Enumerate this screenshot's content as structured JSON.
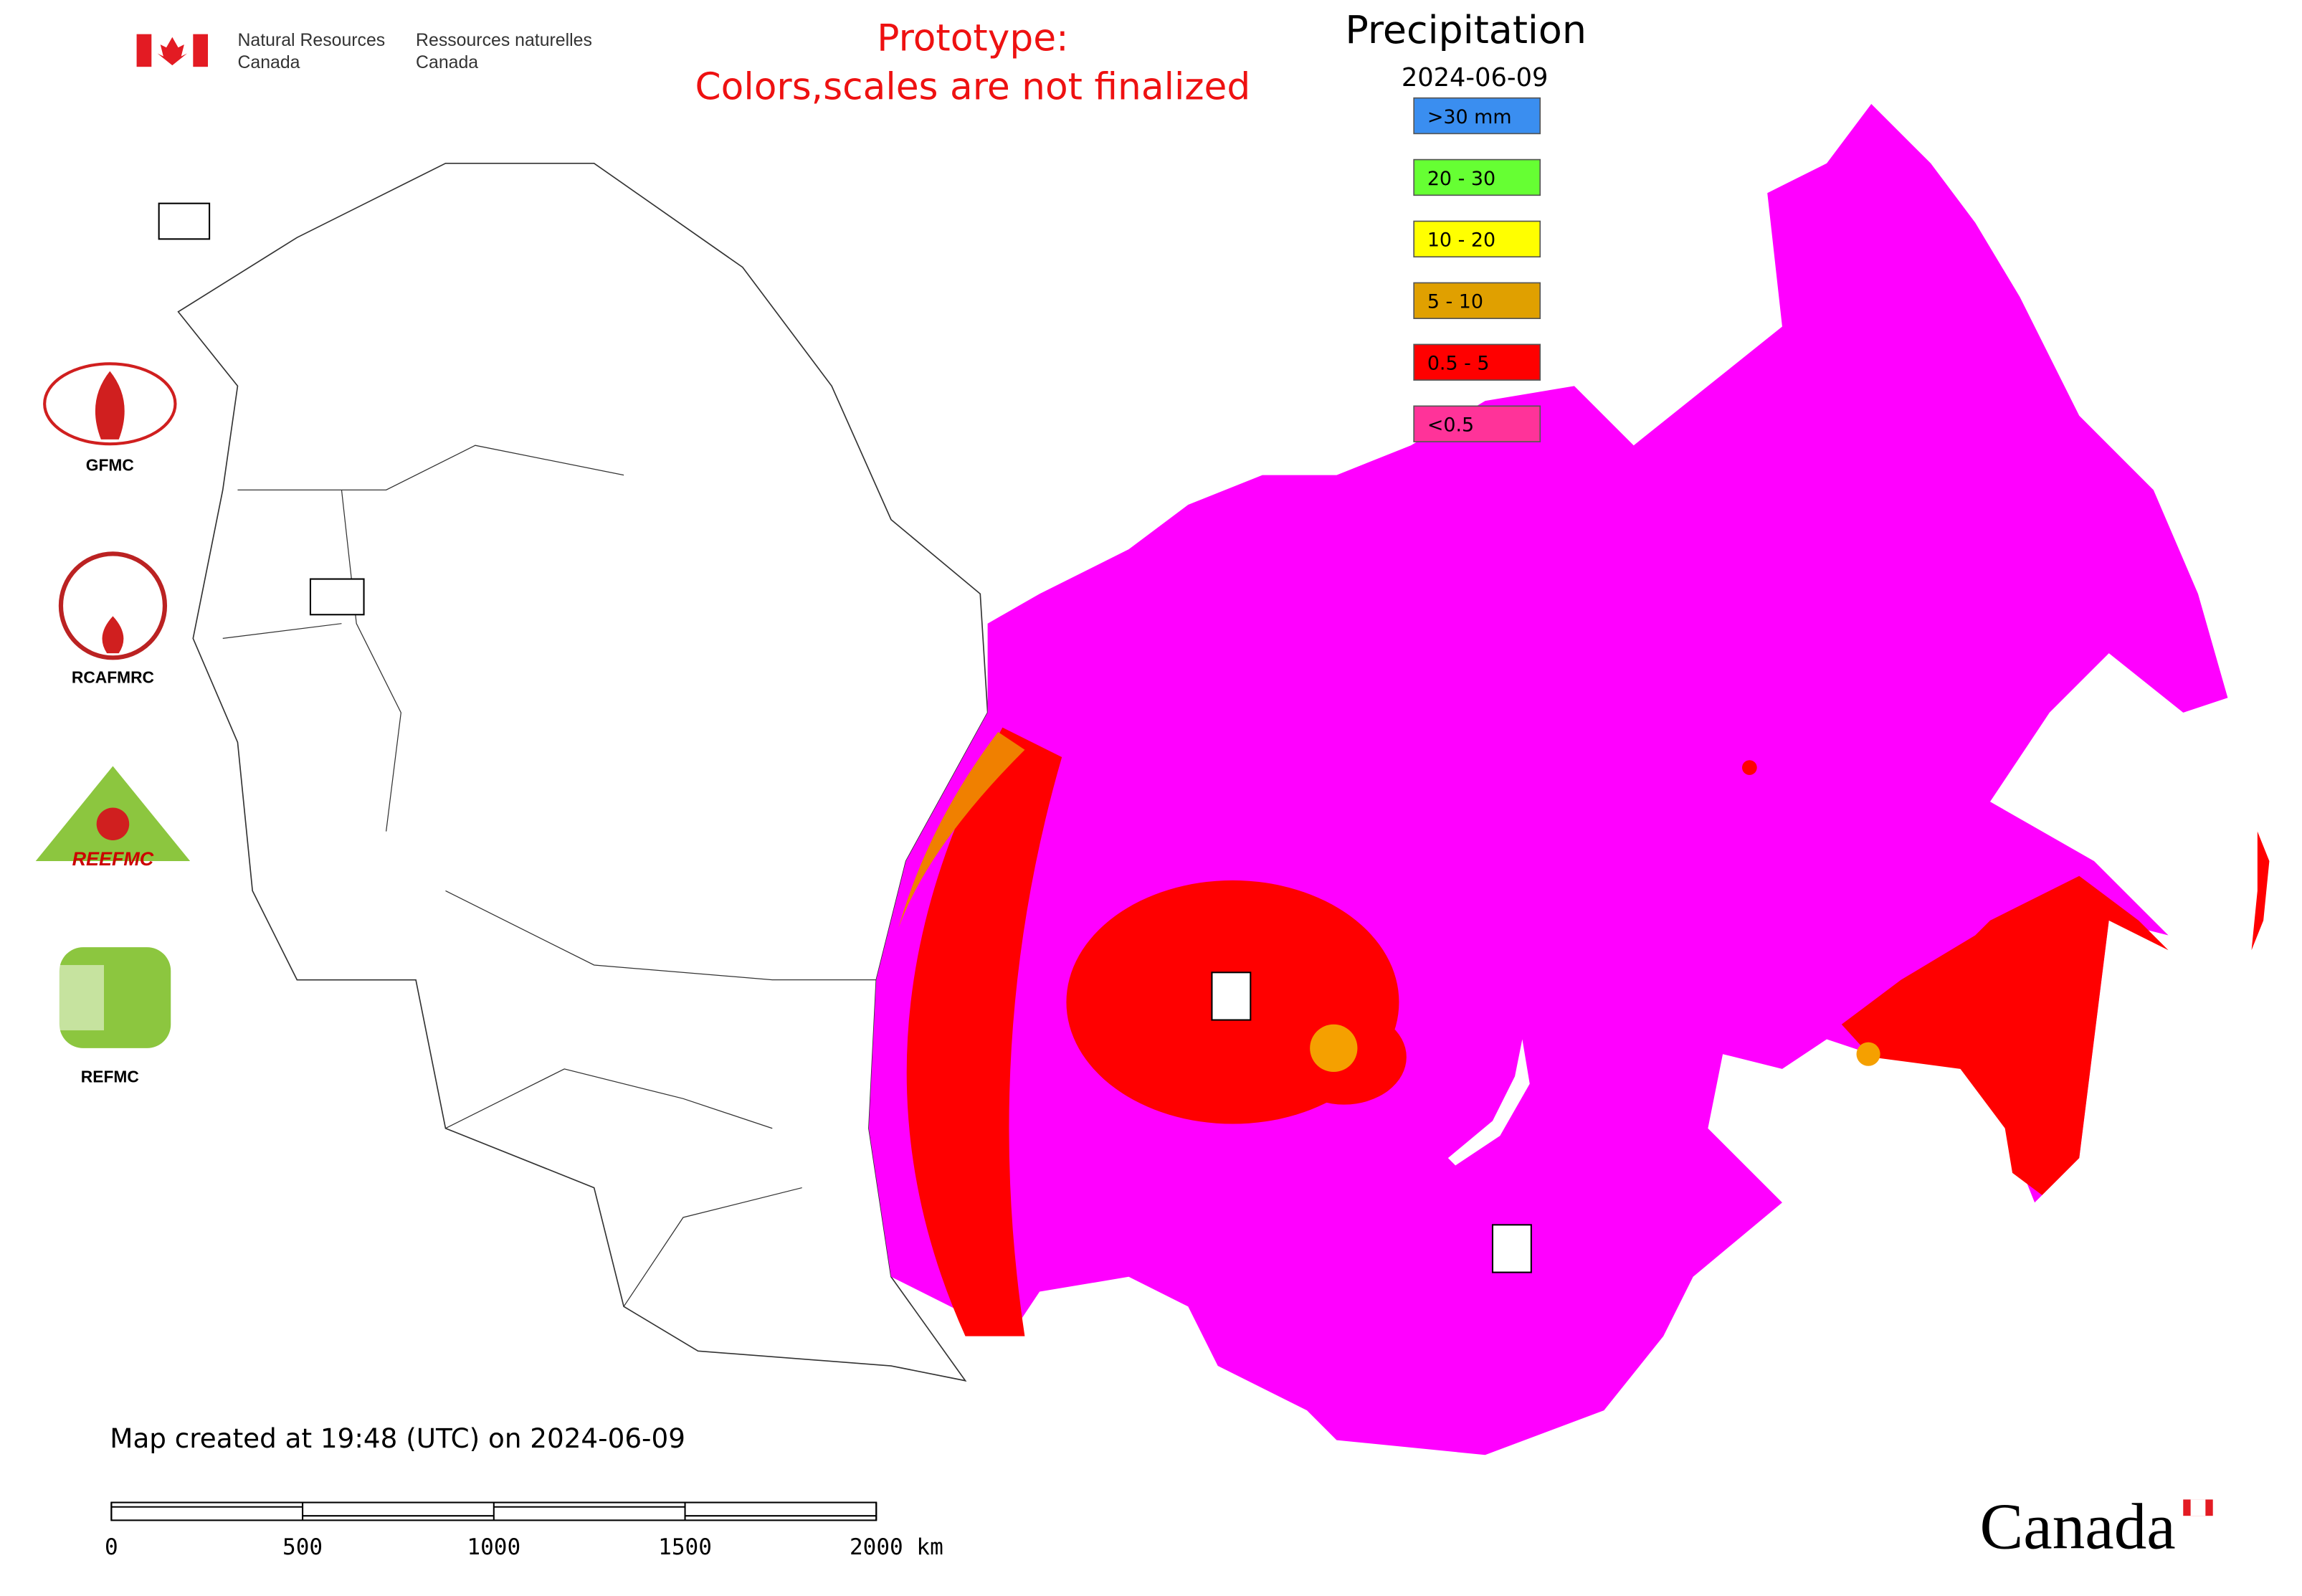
{
  "header": {
    "department_en": [
      "Natural Resources",
      "Canada"
    ],
    "department_fr": [
      "Ressources naturelles",
      "Canada"
    ],
    "notice": [
      "Prototype:",
      "Colors,scales are not finalized"
    ]
  },
  "legend": {
    "title": "Precipitation",
    "date": "2024-06-09",
    "items": [
      {
        "label": ">30 mm",
        "color": "#3a8ef0"
      },
      {
        "label": "20 - 30",
        "color": "#66ff33"
      },
      {
        "label": "10 - 20",
        "color": "#ffff00"
      },
      {
        "label": "5 - 10",
        "color": "#e0a000"
      },
      {
        "label": "0.5 - 5",
        "color": "#ff0000"
      },
      {
        "label": "<0.5",
        "color": "#ff3399"
      }
    ]
  },
  "logos": [
    "GFMC",
    "RCAFMRC",
    "REEFMC",
    "REFMC"
  ],
  "footer": {
    "created": "Map created at 19:48 (UTC) on 2024-06-09",
    "wordmark": "Canada"
  },
  "scale_bar": {
    "ticks": [
      0,
      500,
      1000,
      1500,
      {
        "value": 2000,
        "label": "2000 km"
      }
    ]
  }
}
